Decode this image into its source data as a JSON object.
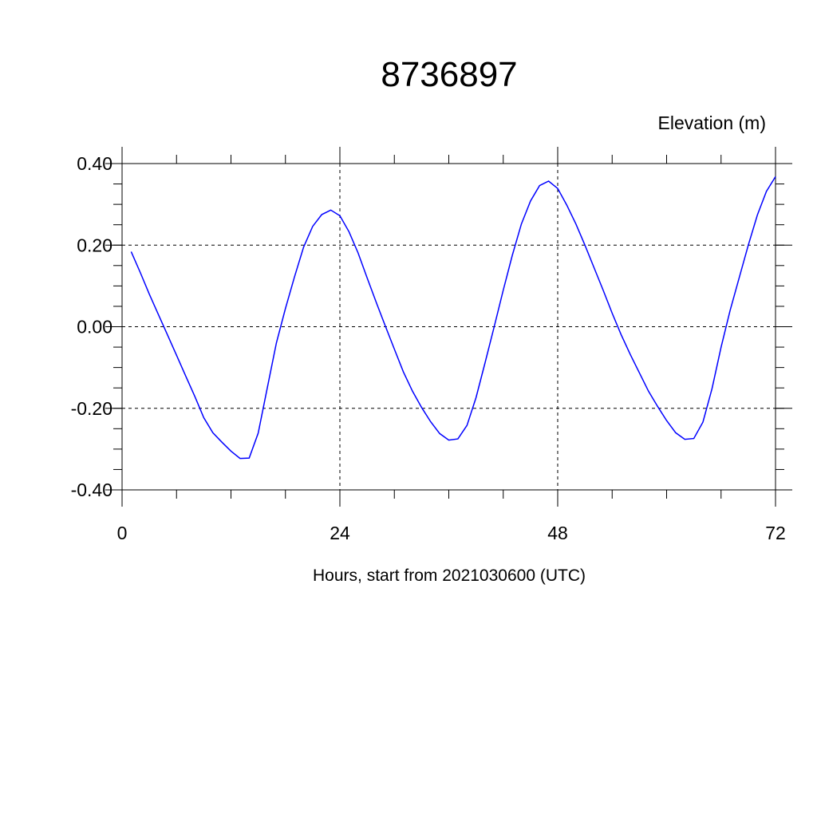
{
  "chart_data": {
    "type": "line",
    "title": "8736897",
    "ylabel": "Elevation (m)",
    "xlabel": "Hours, start from 2021030600 (UTC)",
    "xlim": [
      0,
      72
    ],
    "ylim": [
      -0.4,
      0.4
    ],
    "xticks": [
      0,
      24,
      48,
      72
    ],
    "xtick_labels": [
      "0",
      "24",
      "48",
      "72"
    ],
    "yticks": [
      0.4,
      0.2,
      0.0,
      -0.2,
      -0.4
    ],
    "ytick_labels": [
      "0.40",
      "0.20",
      "0.00",
      "-0.20",
      "-0.40"
    ],
    "x_minor_step": 6,
    "y_minor_step": 0.05,
    "grid": "dashed at major ticks",
    "line_color": "#0000ff",
    "series": [
      {
        "x": [
          1,
          2,
          3,
          4,
          5,
          6,
          7,
          8,
          9,
          10,
          11,
          12,
          13,
          14,
          15,
          16,
          17,
          18,
          19,
          20,
          21,
          22,
          23,
          24,
          25,
          26,
          27,
          28,
          29,
          30,
          31,
          32,
          33,
          34,
          35,
          36,
          37,
          38,
          39,
          40,
          41,
          42,
          43,
          44,
          45,
          46,
          47,
          48,
          49,
          50,
          51,
          52,
          53,
          54,
          55,
          56,
          57,
          58,
          59,
          60,
          61,
          62,
          63,
          64,
          65,
          66,
          67,
          68,
          69,
          70,
          71,
          72
        ],
        "y": [
          0.184,
          0.133,
          0.08,
          0.03,
          -0.02,
          -0.07,
          -0.12,
          -0.17,
          -0.223,
          -0.26,
          -0.283,
          -0.305,
          -0.323,
          -0.322,
          -0.261,
          -0.15,
          -0.04,
          0.045,
          0.122,
          0.195,
          0.246,
          0.275,
          0.286,
          0.272,
          0.233,
          0.181,
          0.12,
          0.06,
          0.002,
          -0.055,
          -0.111,
          -0.158,
          -0.198,
          -0.233,
          -0.262,
          -0.278,
          -0.275,
          -0.242,
          -0.174,
          -0.088,
          0.0,
          0.09,
          0.175,
          0.252,
          0.308,
          0.346,
          0.357,
          0.339,
          0.298,
          0.252,
          0.2,
          0.145,
          0.09,
          0.033,
          -0.02,
          -0.068,
          -0.113,
          -0.158,
          -0.195,
          -0.23,
          -0.26,
          -0.276,
          -0.274,
          -0.234,
          -0.152,
          -0.05,
          0.04,
          0.12,
          0.2,
          0.274,
          0.332,
          0.368
        ]
      }
    ]
  }
}
